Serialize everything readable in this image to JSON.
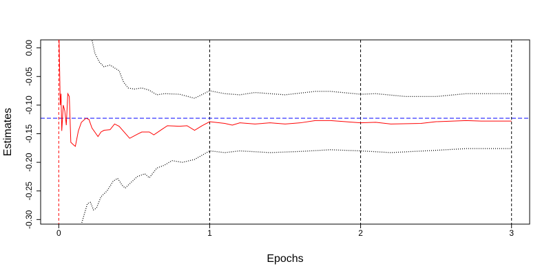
{
  "chart_data": {
    "type": "line",
    "x_label": "Epochs",
    "y_label": "Estimates",
    "xlim": [
      -0.12,
      3.12
    ],
    "ylim": [
      -0.308,
      0.014
    ],
    "xticks": [
      0,
      1,
      2,
      3
    ],
    "yticks": [
      {
        "value": 0,
        "label": "0.00"
      },
      -0.05,
      {
        "value": -0.1,
        "label": "-0.10"
      },
      -0.15,
      {
        "value": -0.2,
        "label": "-0.20"
      },
      -0.25,
      {
        "value": -0.3,
        "label": "-0.30"
      }
    ],
    "hlines": [
      {
        "value": -0.123,
        "color": "#0000ff"
      }
    ],
    "vlines": [
      {
        "value": 0,
        "color": "#ff0000"
      },
      {
        "value": 1,
        "color": "#000000"
      },
      {
        "value": 2,
        "color": "#000000"
      },
      {
        "value": 3,
        "color": "#000000"
      }
    ],
    "series": [
      {
        "color": "#ff0000",
        "style": "solid",
        "x": [
          0,
          0.01,
          0.015,
          0.02,
          0.03,
          0.04,
          0.05,
          0.06,
          0.07,
          0.08,
          0.1,
          0.11,
          0.13,
          0.15,
          0.18,
          0.2,
          0.22,
          0.26,
          0.28,
          0.3,
          0.34,
          0.37,
          0.4,
          0.45,
          0.47,
          0.52,
          0.55,
          0.6,
          0.63,
          0.68,
          0.72,
          0.8,
          0.85,
          0.9,
          0.95,
          1.0,
          1.1,
          1.15,
          1.2,
          1.3,
          1.4,
          1.5,
          1.6,
          1.7,
          1.8,
          1.9,
          2.0,
          2.1,
          2.2,
          2.4,
          2.5,
          2.7,
          2.8,
          3.0
        ],
        "values": [
          0.05,
          -0.1,
          -0.08,
          -0.145,
          -0.1,
          -0.11,
          -0.135,
          -0.08,
          -0.085,
          -0.165,
          -0.17,
          -0.172,
          -0.145,
          -0.13,
          -0.123,
          -0.125,
          -0.14,
          -0.155,
          -0.147,
          -0.144,
          -0.143,
          -0.133,
          -0.137,
          -0.152,
          -0.158,
          -0.151,
          -0.147,
          -0.147,
          -0.152,
          -0.143,
          -0.136,
          -0.137,
          -0.136,
          -0.144,
          -0.136,
          -0.129,
          -0.132,
          -0.135,
          -0.131,
          -0.133,
          -0.131,
          -0.133,
          -0.131,
          -0.127,
          -0.127,
          -0.129,
          -0.131,
          -0.13,
          -0.133,
          -0.132,
          -0.129,
          -0.127,
          -0.128,
          -0.128
        ]
      },
      {
        "color": "#000000",
        "style": "dotted",
        "x": [
          0.2,
          0.22,
          0.24,
          0.27,
          0.3,
          0.34,
          0.37,
          0.4,
          0.43,
          0.46,
          0.5,
          0.55,
          0.6,
          0.65,
          0.7,
          0.8,
          0.9,
          1.0,
          1.1,
          1.2,
          1.3,
          1.5,
          1.7,
          1.8,
          2.0,
          2.1,
          2.3,
          2.5,
          2.7,
          3.0
        ],
        "values": [
          0.03,
          0.014,
          -0.01,
          -0.025,
          -0.033,
          -0.03,
          -0.035,
          -0.04,
          -0.06,
          -0.07,
          -0.072,
          -0.07,
          -0.074,
          -0.082,
          -0.08,
          -0.081,
          -0.088,
          -0.075,
          -0.08,
          -0.082,
          -0.078,
          -0.082,
          -0.076,
          -0.076,
          -0.081,
          -0.08,
          -0.085,
          -0.085,
          -0.08,
          -0.08
        ]
      },
      {
        "color": "#000000",
        "style": "dotted",
        "x": [
          0.13,
          0.15,
          0.17,
          0.19,
          0.21,
          0.23,
          0.25,
          0.28,
          0.32,
          0.36,
          0.39,
          0.42,
          0.44,
          0.48,
          0.52,
          0.57,
          0.6,
          0.65,
          0.7,
          0.75,
          0.82,
          0.9,
          1.0,
          1.1,
          1.2,
          1.4,
          1.6,
          1.8,
          2.0,
          2.2,
          2.5,
          2.7,
          3.0
        ],
        "values": [
          -0.33,
          -0.308,
          -0.29,
          -0.272,
          -0.27,
          -0.283,
          -0.28,
          -0.26,
          -0.25,
          -0.233,
          -0.228,
          -0.24,
          -0.245,
          -0.235,
          -0.225,
          -0.22,
          -0.227,
          -0.21,
          -0.205,
          -0.197,
          -0.2,
          -0.195,
          -0.18,
          -0.183,
          -0.18,
          -0.183,
          -0.181,
          -0.178,
          -0.18,
          -0.183,
          -0.179,
          -0.176,
          -0.176
        ]
      }
    ]
  }
}
